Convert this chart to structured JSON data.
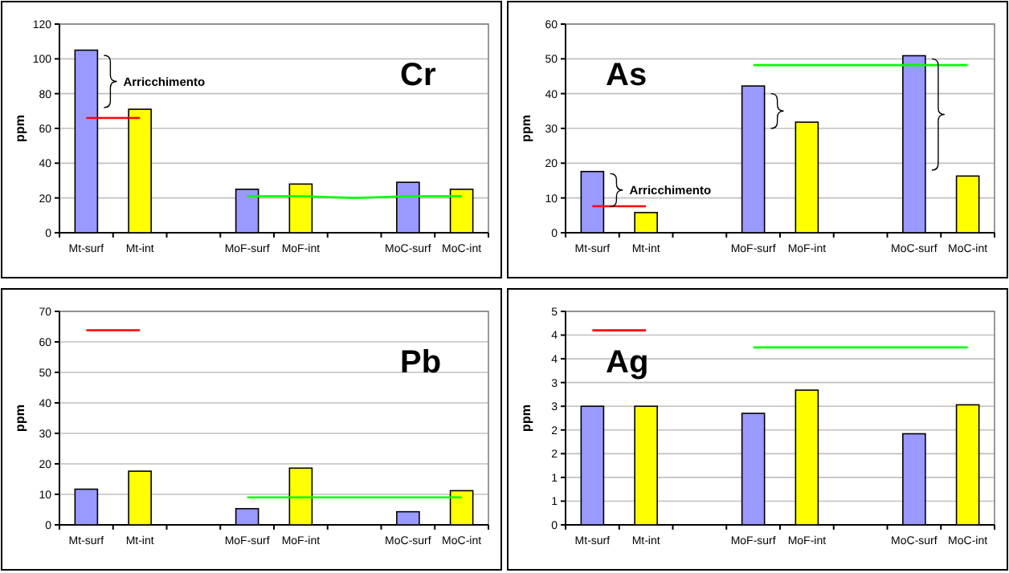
{
  "chart_data": [
    {
      "type": "bar",
      "title": "Cr",
      "ylabel": "ppm",
      "categories": [
        "Mt-surf",
        "Mt-int",
        null,
        "MoF-surf",
        "MoF-int",
        null,
        "MoC-surf",
        "MoC-int"
      ],
      "ylim": [
        0,
        120
      ],
      "yticks": [
        0,
        20,
        40,
        60,
        80,
        100,
        120
      ],
      "grid": "y",
      "annotations": [
        "Arricchimento"
      ],
      "series": [
        {
          "values": [
            105,
            71,
            null,
            25,
            28,
            null,
            29,
            25
          ],
          "colors": [
            "#9999ff",
            "#ffff00",
            null,
            "#9999ff",
            "#ffff00",
            null,
            "#9999ff",
            "#ffff00"
          ]
        },
        {
          "type": "line",
          "color": "#ff0000",
          "values": [
            66,
            66,
            null,
            null,
            null,
            null,
            null,
            null
          ]
        },
        {
          "type": "line",
          "color": "#00ff00",
          "values": [
            null,
            null,
            null,
            21,
            21,
            20,
            21,
            21
          ]
        }
      ]
    },
    {
      "type": "bar",
      "title": "As",
      "ylabel": "ppm",
      "categories": [
        "Mt-surf",
        "Mt-int",
        null,
        "MoF-surf",
        "MoF-int",
        null,
        "MoC-surf",
        "MoC-int"
      ],
      "ylim": [
        0,
        60
      ],
      "yticks": [
        0,
        10,
        20,
        30,
        40,
        50,
        60
      ],
      "grid": "y",
      "annotations": [
        "Arricchimento"
      ],
      "series": [
        {
          "values": [
            17.6,
            5.8,
            null,
            42.2,
            31.8,
            null,
            50.9,
            16.3
          ],
          "colors": [
            "#9999ff",
            "#ffff00",
            null,
            "#9999ff",
            "#ffff00",
            null,
            "#9999ff",
            "#ffff00"
          ]
        },
        {
          "type": "line",
          "color": "#ff0000",
          "values": [
            7.6,
            7.6,
            null,
            null,
            null,
            null,
            null,
            null
          ]
        },
        {
          "type": "line",
          "color": "#00ff00",
          "values": [
            null,
            null,
            null,
            48.2,
            48.2,
            48.2,
            48.2,
            48.2
          ]
        }
      ]
    },
    {
      "type": "bar",
      "title": "Pb",
      "ylabel": "ppm",
      "categories": [
        "Mt-surf",
        "Mt-int",
        null,
        "MoF-surf",
        "MoF-int",
        null,
        "MoC-surf",
        "MoC-int"
      ],
      "ylim": [
        0,
        70
      ],
      "yticks": [
        0,
        10,
        20,
        30,
        40,
        50,
        60,
        70
      ],
      "grid": "y",
      "series": [
        {
          "values": [
            11.7,
            17.6,
            null,
            5.3,
            18.6,
            null,
            4.3,
            11.2
          ],
          "colors": [
            "#9999ff",
            "#ffff00",
            null,
            "#9999ff",
            "#ffff00",
            null,
            "#9999ff",
            "#ffff00"
          ]
        },
        {
          "type": "line",
          "color": "#ff0000",
          "values": [
            63.8,
            63.8,
            null,
            null,
            null,
            null,
            null,
            null
          ]
        },
        {
          "type": "line",
          "color": "#00ff00",
          "values": [
            null,
            null,
            null,
            9,
            9,
            9,
            9,
            9
          ]
        }
      ]
    },
    {
      "type": "bar",
      "title": "Ag",
      "ylabel": "ppm",
      "categories": [
        "Mt-surf",
        "Mt-int",
        null,
        "MoF-surf",
        "MoF-int",
        null,
        "MoC-surf",
        "MoC-int"
      ],
      "ylim": [
        0,
        4.5
      ],
      "yticks": [
        0,
        {
          "value": 0.5,
          "label": "1"
        },
        1,
        {
          "value": 1.5,
          "label": "2"
        },
        2,
        {
          "value": 2.5,
          "label": "3"
        },
        3,
        {
          "value": 3.5,
          "label": "4"
        },
        4,
        {
          "value": 4.5,
          "label": "5"
        }
      ],
      "grid": "y",
      "series": [
        {
          "values": [
            2.5,
            2.5,
            null,
            2.35,
            2.84,
            null,
            1.92,
            2.53
          ],
          "colors": [
            "#9999ff",
            "#ffff00",
            null,
            "#9999ff",
            "#ffff00",
            null,
            "#9999ff",
            "#ffff00"
          ]
        },
        {
          "type": "line",
          "color": "#ff0000",
          "values": [
            4.1,
            4.1,
            null,
            null,
            null,
            null,
            null,
            null
          ]
        },
        {
          "type": "line",
          "color": "#00ff00",
          "values": [
            null,
            null,
            null,
            3.74,
            3.74,
            3.74,
            3.74,
            3.74
          ]
        }
      ]
    }
  ]
}
